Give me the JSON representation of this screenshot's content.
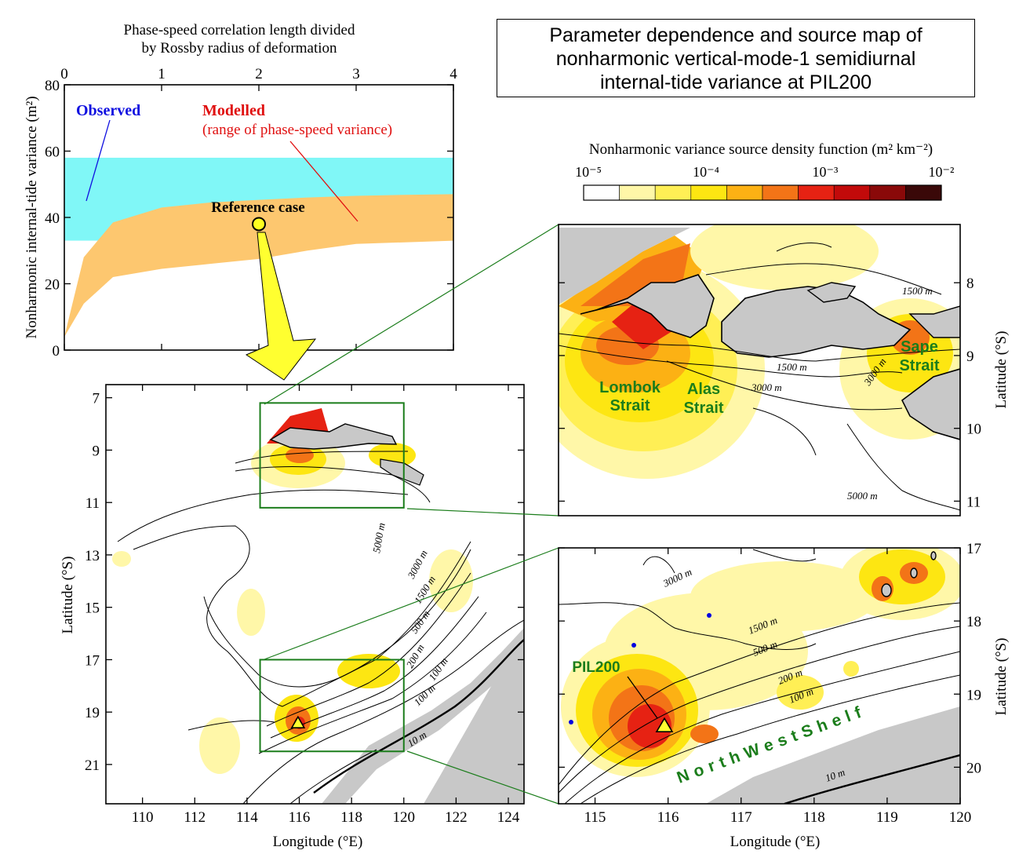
{
  "figure_title": [
    "Parameter dependence and source map of",
    "nonharmonic vertical-mode-1 semidiurnal",
    "internal-tide variance at PIL200"
  ],
  "colors": {
    "observed_band": "#80f7f7",
    "modelled_band": "#fdc76f",
    "observed_text": "#1010e0",
    "modelled_text": "#e01010",
    "land": "#c8c8c8",
    "box": "#1b7d1b",
    "strait_label": "#1b7d1b",
    "marker": "#ffff20"
  },
  "chart_data": [
    {
      "id": "parameter_dependence",
      "type": "area",
      "x_title_lines": [
        "Phase-speed correlation length divided",
        "by Rossby radius of deformation"
      ],
      "x_axis_position": "top",
      "ylabel": "Nonharmonic internal-tide variance (m²)",
      "xlim": [
        0,
        4
      ],
      "ylim": [
        0,
        80
      ],
      "xticks": [
        0,
        1,
        2,
        3,
        4
      ],
      "yticks": [
        0,
        20,
        40,
        60,
        80
      ],
      "observed": {
        "label": "Observed",
        "y_range": [
          33,
          58
        ]
      },
      "modelled": {
        "label": "Modelled",
        "sublabel": "(range of phase-speed variance)",
        "x": [
          0,
          0.2,
          0.5,
          1,
          1.5,
          2,
          2.5,
          3,
          3.5,
          4
        ],
        "lower": [
          4,
          14,
          22,
          24.5,
          26,
          27.5,
          30,
          32,
          32.5,
          33
        ],
        "upper": [
          4,
          28,
          38.5,
          43,
          44.5,
          45.3,
          46,
          46.5,
          46.8,
          47
        ]
      },
      "reference": {
        "label": "Reference case",
        "x": 2.0,
        "y": 38
      }
    },
    {
      "id": "colorbar",
      "type": "heatmap",
      "title": "Nonharmonic variance source density function (m² km⁻²)",
      "tick_labels": [
        "10⁻⁵",
        "10⁻⁴",
        "10⁻³",
        "10⁻²"
      ],
      "levels": [
        "#ffffff",
        "#fff7a8",
        "#ffef55",
        "#fde612",
        "#fcb114",
        "#f37417",
        "#e62213",
        "#c20a0a",
        "#8a0909",
        "#5c0e0e",
        "#3a0808"
      ]
    },
    {
      "id": "overview_map",
      "type": "heatmap",
      "xlabel": "Longitude (°E)",
      "ylabel": "Latitude (°S)",
      "xlim": [
        108.6,
        124.6
      ],
      "ylim": [
        22.5,
        6.5
      ],
      "xticks": [
        110,
        112,
        114,
        116,
        118,
        120,
        122,
        124
      ],
      "yticks": [
        7,
        9,
        11,
        13,
        15,
        17,
        19,
        21
      ],
      "contour_labels": [
        "5000 m",
        "3000 m",
        "1500 m",
        "500 m",
        "200 m",
        "100 m",
        "100 m",
        "10 m"
      ],
      "inset_boxes": [
        {
          "name": "north",
          "lon": [
            114.5,
            120
          ],
          "lat": [
            7.2,
            11.2
          ]
        },
        {
          "name": "south",
          "lon": [
            114.5,
            120
          ],
          "lat": [
            17,
            20.5
          ]
        }
      ],
      "station": {
        "name": "PIL200",
        "lon": 115.95,
        "lat": 19.45
      }
    },
    {
      "id": "north_inset",
      "type": "heatmap",
      "ylabel": "Latitude (°S)",
      "ylim": [
        11.2,
        7.2
      ],
      "yticks": [
        8,
        9,
        10,
        11
      ],
      "contour_labels": [
        "1500 m",
        "1500 m",
        "3000 m",
        "3000 m",
        "5000 m"
      ],
      "region_labels": [
        [
          "Lombok",
          "Strait"
        ],
        [
          "Alas",
          "Strait"
        ],
        [
          "Sape",
          "Strait"
        ]
      ]
    },
    {
      "id": "south_inset",
      "type": "heatmap",
      "xlabel": "Longitude (°E)",
      "ylabel": "Latitude (°S)",
      "xlim": [
        114.5,
        120
      ],
      "ylim": [
        20.5,
        17
      ],
      "xticks": [
        115,
        116,
        117,
        118,
        119,
        120
      ],
      "yticks": [
        17,
        18,
        19,
        20
      ],
      "contour_labels": [
        "3000 m",
        "1500 m",
        "500 m",
        "200 m",
        "100 m",
        "10 m"
      ],
      "region_label": "NorthWestShelf",
      "station": {
        "name": "PIL200",
        "lon": 115.95,
        "lat": 19.45
      }
    }
  ]
}
